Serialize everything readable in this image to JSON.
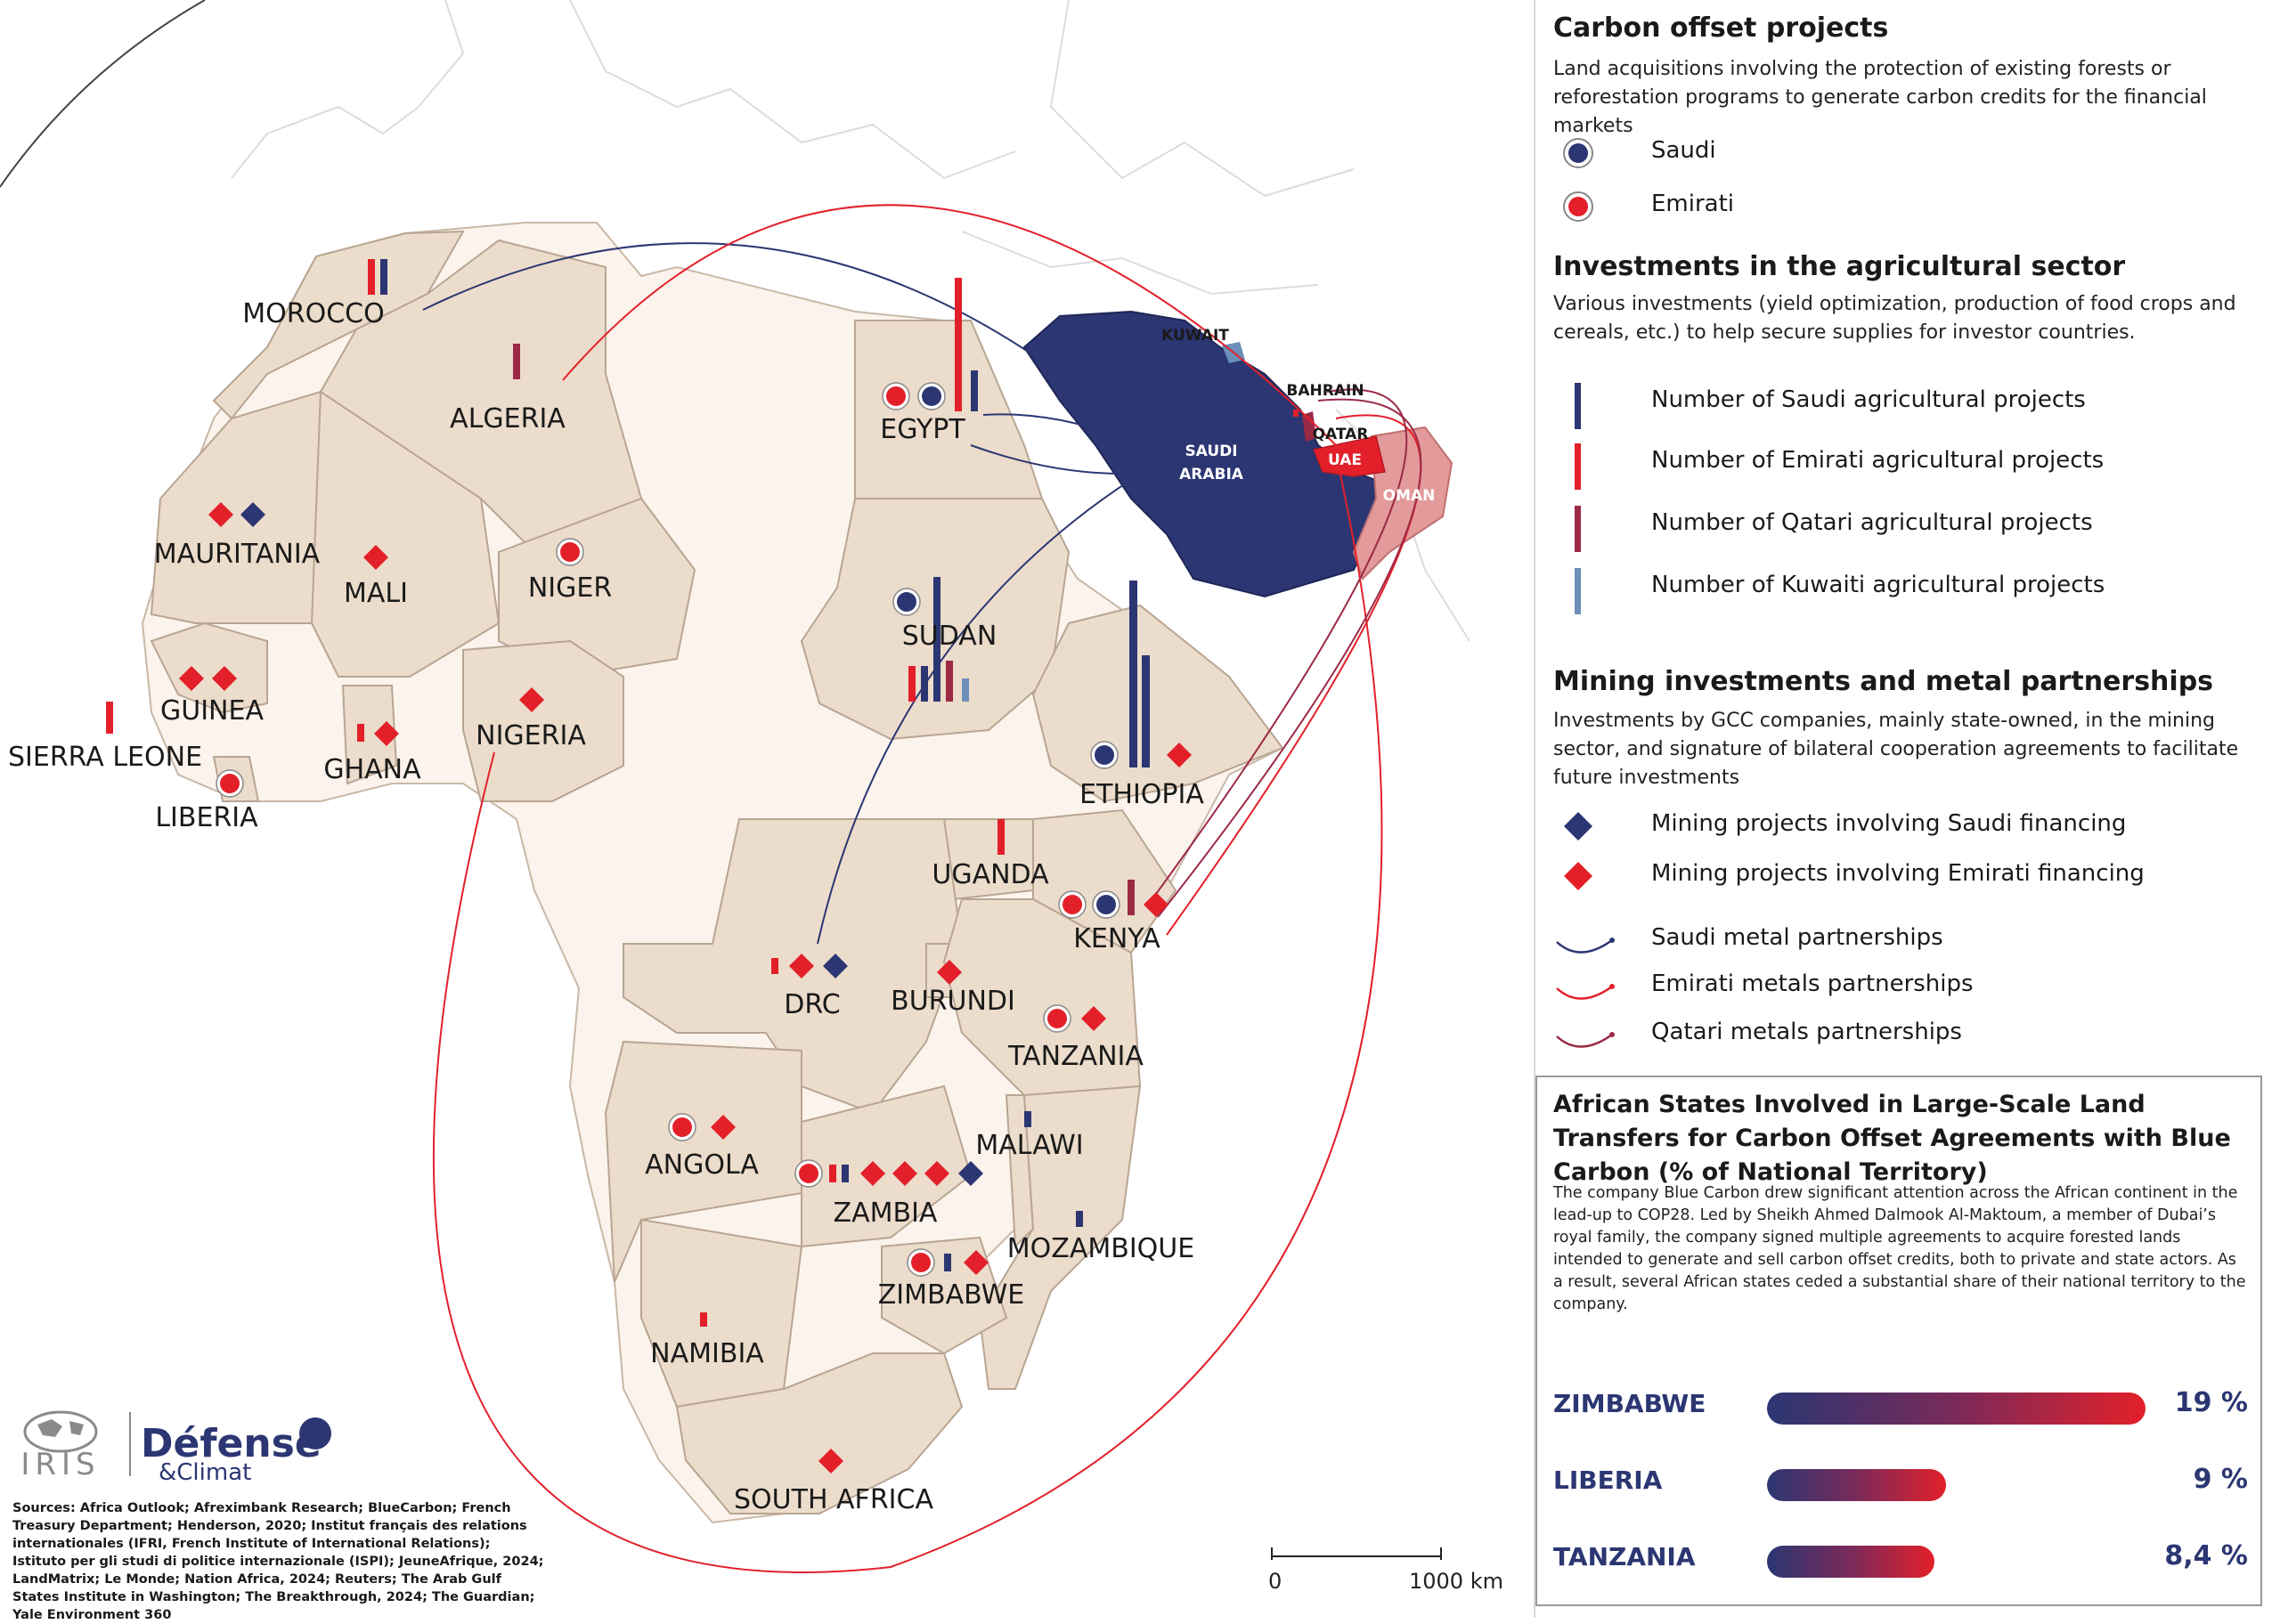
{
  "map": {
    "countries": {
      "morocco": "MOROCCO",
      "algeria": "ALGERIA",
      "egypt": "EGYPT",
      "mauritania": "MAURITANIA",
      "mali": "MALI",
      "niger": "NIGER",
      "sudan": "SUDAN",
      "guinea": "GUINEA",
      "sierra_leone": "SIERRA LEONE",
      "ghana": "GHANA",
      "nigeria": "NIGERIA",
      "liberia": "LIBERIA",
      "ethiopia": "ETHIOPIA",
      "uganda": "UGANDA",
      "kenya": "KENYA",
      "drc": "DRC",
      "burundi": "BURUNDI",
      "tanzania": "TANZANIA",
      "angola": "ANGOLA",
      "malawi": "MALAWI",
      "zambia": "ZAMBIA",
      "mozambique": "MOZAMBIQUE",
      "zimbabwe": "ZIMBABWE",
      "namibia": "NAMIBIA",
      "south_africa": "SOUTH AFRICA"
    },
    "gulf": {
      "kuwait": "KUWAIT",
      "bahrain": "BAHRAIN",
      "qatar": "QATAR",
      "uae": "UAE",
      "oman": "OMAN",
      "saudi_line1": "SAUDI",
      "saudi_line2": "ARABIA"
    },
    "scale_zero": "0",
    "scale_max": "1000 km"
  },
  "colors": {
    "saudi": "#2b3672",
    "emirati": "#e3202a",
    "qatari": "#9b2a45",
    "kuwaiti": "#6b8fb8",
    "involved_land": "#ecdccb",
    "other_land": "#fbf3ec",
    "oman": "#e39a9a"
  },
  "legend": {
    "carbon": {
      "title": "Carbon offset projects",
      "desc": "Land acquisitions involving the protection of existing forests or reforestation programs to generate carbon credits for the financial markets",
      "saudi": "Saudi",
      "emirati": "Emirati"
    },
    "agri": {
      "title": "Investments in the agricultural sector",
      "desc": "Various investments (yield optimization, production of food crops and cereals, etc.) to help secure supplies for investor countries.",
      "saudi": "Number of Saudi agricultural projects",
      "emirati": "Number of Emirati agricultural projects",
      "qatari": "Number of Qatari agricultural projects",
      "kuwaiti": "Number of Kuwaiti agricultural projects"
    },
    "mining": {
      "title": "Mining investments and metal partnerships",
      "desc": "Investments by GCC companies, mainly state-owned, in the mining sector, and signature of bilateral cooperation agreements to facilitate future investments",
      "saudi_mining": "Mining projects involving Saudi financing",
      "emirati_mining": "Mining projects involving Emirati financing",
      "saudi_metal": "Saudi metal partnerships",
      "emirati_metal": "Emirati metals partnerships",
      "qatari_metal": "Qatari metals partnerships"
    }
  },
  "blue_carbon": {
    "title": "African States Involved in Large-Scale Land Transfers for Carbon Offset Agreements with Blue Carbon (% of National Territory)",
    "desc": "The company Blue Carbon drew significant attention across the African continent in the lead-up to COP28. Led by Sheikh Ahmed Dalmook Al-Maktoum, a member of Dubai’s royal family, the company signed multiple agreements to acquire forested lands intended to generate and sell carbon offset credits, both to private and state actors. As a result, several African states ceded a substantial share of their national territory to the company.",
    "rows": [
      {
        "country": "ZIMBABWE",
        "value": 19,
        "label": "19 %"
      },
      {
        "country": "LIBERIA",
        "value": 9,
        "label": "9 %"
      },
      {
        "country": "TANZANIA",
        "value": 8.4,
        "label": "8,4 %"
      }
    ]
  },
  "logo": {
    "iris": "IRIS",
    "defense": "Défense",
    "climat": "&Climat"
  },
  "sources": "Sources: Africa Outlook; Afreximbank Research; BlueCarbon; French Treasury Department; Henderson, 2020; Institut français des relations internationales (IFRI, French Institute of International Relations); Istituto per gli studi di politice internazionale (ISPI); JeuneAfrique, 2024; LandMatrix; Le Monde; Nation Africa, 2024; Reuters; The Arab Gulf States Institute in Washington; The Breakthrough, 2024; The Guardian; Yale Environment 360"
}
